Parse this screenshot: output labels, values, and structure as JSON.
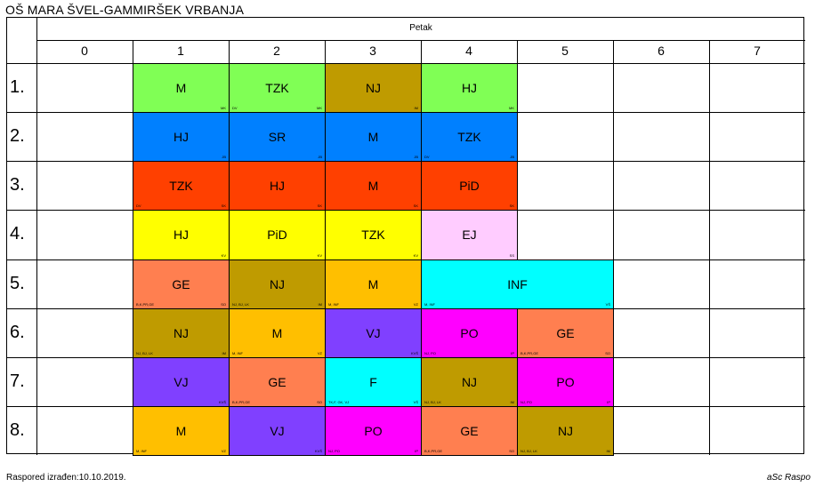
{
  "header": {
    "title": "OŠ MARA ŠVEL-GAMMIRŠEK VRBANJA"
  },
  "day": {
    "label": "Petak"
  },
  "periods": [
    "0",
    "1",
    "2",
    "3",
    "4",
    "5",
    "6",
    "7"
  ],
  "rows": [
    "1.",
    "2.",
    "3.",
    "4.",
    "5.",
    "6.",
    "7.",
    "8."
  ],
  "lessons": [
    {
      "subject": "M",
      "left": "",
      "right": "MK",
      "color": "#80ff55",
      "row": 0,
      "col": 1,
      "span": 1
    },
    {
      "subject": "TZK",
      "left": "DV",
      "right": "MK",
      "color": "#80ff55",
      "row": 0,
      "col": 2,
      "span": 1
    },
    {
      "subject": "NJ",
      "left": "",
      "right": "IM",
      "color": "#bf9b00",
      "row": 0,
      "col": 3,
      "span": 1
    },
    {
      "subject": "HJ",
      "left": "",
      "right": "MK",
      "color": "#80ff55",
      "row": 0,
      "col": 4,
      "span": 1
    },
    {
      "subject": "HJ",
      "left": "",
      "right": "JB",
      "color": "#0080ff",
      "row": 1,
      "col": 1,
      "span": 1
    },
    {
      "subject": "SR",
      "left": "",
      "right": "JB",
      "color": "#0080ff",
      "row": 1,
      "col": 2,
      "span": 1
    },
    {
      "subject": "M",
      "left": "",
      "right": "JB",
      "color": "#0080ff",
      "row": 1,
      "col": 3,
      "span": 1
    },
    {
      "subject": "TZK",
      "left": "DV",
      "right": "JB",
      "color": "#0080ff",
      "row": 1,
      "col": 4,
      "span": 1
    },
    {
      "subject": "TZK",
      "left": "DV",
      "right": "SK",
      "color": "#ff4000",
      "row": 2,
      "col": 1,
      "span": 1
    },
    {
      "subject": "HJ",
      "left": "",
      "right": "SK",
      "color": "#ff4000",
      "row": 2,
      "col": 2,
      "span": 1
    },
    {
      "subject": "M",
      "left": "",
      "right": "SK",
      "color": "#ff4000",
      "row": 2,
      "col": 3,
      "span": 1
    },
    {
      "subject": "PiD",
      "left": "",
      "right": "SK",
      "color": "#ff4000",
      "row": 2,
      "col": 4,
      "span": 1
    },
    {
      "subject": "HJ",
      "left": "",
      "right": "KV",
      "color": "#ffff00",
      "row": 3,
      "col": 1,
      "span": 1
    },
    {
      "subject": "PiD",
      "left": "",
      "right": "KV",
      "color": "#ffff00",
      "row": 3,
      "col": 2,
      "span": 1
    },
    {
      "subject": "TZK",
      "left": "",
      "right": "KV",
      "color": "#ffff00",
      "row": 3,
      "col": 3,
      "span": 1
    },
    {
      "subject": "EJ",
      "left": "",
      "right": "SS",
      "color": "#ffccff",
      "row": 3,
      "col": 4,
      "span": 1
    },
    {
      "subject": "GE",
      "left": "B,K,PR,GE",
      "right": "SO",
      "color": "#ff7f50",
      "row": 4,
      "col": 1,
      "span": 1
    },
    {
      "subject": "NJ",
      "left": "NJ, BJ, LK",
      "right": "IM",
      "color": "#bf9b00",
      "row": 4,
      "col": 2,
      "span": 1
    },
    {
      "subject": "M",
      "left": "M, INF",
      "right": "VZ",
      "color": "#ffbf00",
      "row": 4,
      "col": 3,
      "span": 1
    },
    {
      "subject": "INF",
      "left": "M, INF",
      "right": "VŠ",
      "color": "#00ffff",
      "row": 4,
      "col": 4,
      "span": 2
    },
    {
      "subject": "NJ",
      "left": "NJ, BJ, LK",
      "right": "IM",
      "color": "#bf9b00",
      "row": 5,
      "col": 1,
      "span": 1
    },
    {
      "subject": "M",
      "left": "M, INF",
      "right": "VZ",
      "color": "#ffbf00",
      "row": 5,
      "col": 2,
      "span": 1
    },
    {
      "subject": "VJ",
      "left": "",
      "right": "KVŠ",
      "color": "#8040ff",
      "row": 5,
      "col": 3,
      "span": 1
    },
    {
      "subject": "PO",
      "left": "NJ, PO",
      "right": "IP",
      "color": "#ff00ff",
      "row": 5,
      "col": 4,
      "span": 1
    },
    {
      "subject": "GE",
      "left": "B,K,PR,GE",
      "right": "SO",
      "color": "#ff7f50",
      "row": 5,
      "col": 5,
      "span": 1
    },
    {
      "subject": "VJ",
      "left": "",
      "right": "KVŠ",
      "color": "#8040ff",
      "row": 6,
      "col": 1,
      "span": 1
    },
    {
      "subject": "GE",
      "left": "B,K,PR,GE",
      "right": "SO",
      "color": "#ff7f50",
      "row": 6,
      "col": 2,
      "span": 1
    },
    {
      "subject": "F",
      "left": "TK,F, GK, VJ",
      "right": "VŠ",
      "color": "#00ffff",
      "row": 6,
      "col": 3,
      "span": 1
    },
    {
      "subject": "NJ",
      "left": "NJ, BJ, LK",
      "right": "IM",
      "color": "#bf9b00",
      "row": 6,
      "col": 4,
      "span": 1
    },
    {
      "subject": "PO",
      "left": "NJ, PO",
      "right": "IP",
      "color": "#ff00ff",
      "row": 6,
      "col": 5,
      "span": 1
    },
    {
      "subject": "M",
      "left": "M, INF",
      "right": "VZ",
      "color": "#ffbf00",
      "row": 7,
      "col": 1,
      "span": 1
    },
    {
      "subject": "VJ",
      "left": "",
      "right": "KVŠ",
      "color": "#8040ff",
      "row": 7,
      "col": 2,
      "span": 1
    },
    {
      "subject": "PO",
      "left": "NJ, PO",
      "right": "IP",
      "color": "#ff00ff",
      "row": 7,
      "col": 3,
      "span": 1
    },
    {
      "subject": "GE",
      "left": "B,K,PR,GE",
      "right": "SO",
      "color": "#ff7f50",
      "row": 7,
      "col": 4,
      "span": 1
    },
    {
      "subject": "NJ",
      "left": "NJ, BJ, LK",
      "right": "IM",
      "color": "#bf9b00",
      "row": 7,
      "col": 5,
      "span": 1
    }
  ],
  "footer": {
    "left": "Raspored izrađen:10.10.2019.",
    "right": "aSc Raspo"
  }
}
